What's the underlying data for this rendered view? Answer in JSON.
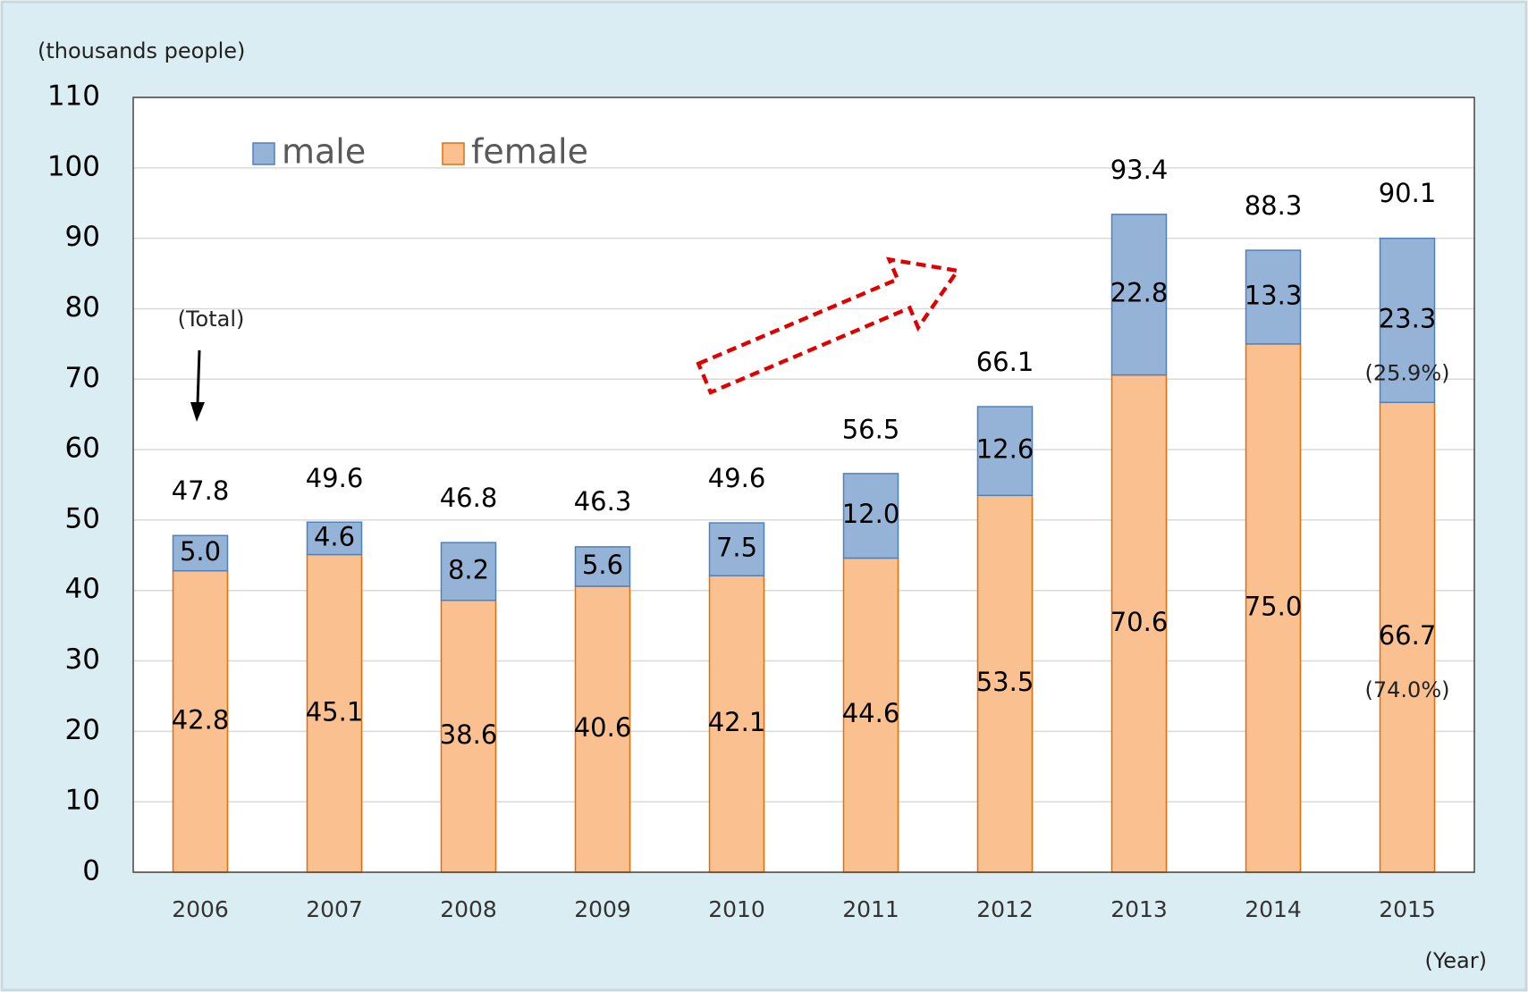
{
  "chart_data": {
    "type": "stacked_bar",
    "unit_label": "(thousands people)",
    "x_axis_label": "(Year)",
    "categories": [
      "2006",
      "2007",
      "2008",
      "2009",
      "2010",
      "2011",
      "2012",
      "2013",
      "2014",
      "2015"
    ],
    "series": [
      {
        "name": "female",
        "color": "#fac090",
        "values": [
          42.8,
          45.1,
          38.6,
          40.6,
          42.1,
          44.6,
          53.5,
          70.6,
          75.0,
          66.7
        ],
        "value_labels": [
          "42.8",
          "45.1",
          "38.6",
          "40.6",
          "42.1",
          "44.6",
          "53.5",
          "70.6",
          "75.0",
          "66.7"
        ]
      },
      {
        "name": "male",
        "color": "#95b3d7",
        "values": [
          5.0,
          4.6,
          8.2,
          5.6,
          7.5,
          12.0,
          12.6,
          22.8,
          13.3,
          23.3
        ],
        "value_labels": [
          "5.0",
          "4.6",
          "8.2",
          "5.6",
          "7.5",
          "12.0",
          "12.6",
          "22.8",
          "13.3",
          "23.3"
        ]
      }
    ],
    "totals": [
      47.8,
      49.6,
      46.8,
      46.3,
      49.6,
      56.5,
      66.1,
      93.4,
      88.3,
      90.1
    ],
    "total_note": "(Total)",
    "share_labels": [
      {
        "series": "female",
        "category": "2015",
        "text": "(74.0%)"
      },
      {
        "series": "male",
        "category": "2015",
        "text": "(25.9%)"
      }
    ],
    "ylim": [
      0,
      110
    ],
    "yticks": [
      0,
      10,
      20,
      30,
      40,
      50,
      60,
      70,
      80,
      90,
      100,
      110
    ],
    "grid": true,
    "legend": "top-left"
  }
}
